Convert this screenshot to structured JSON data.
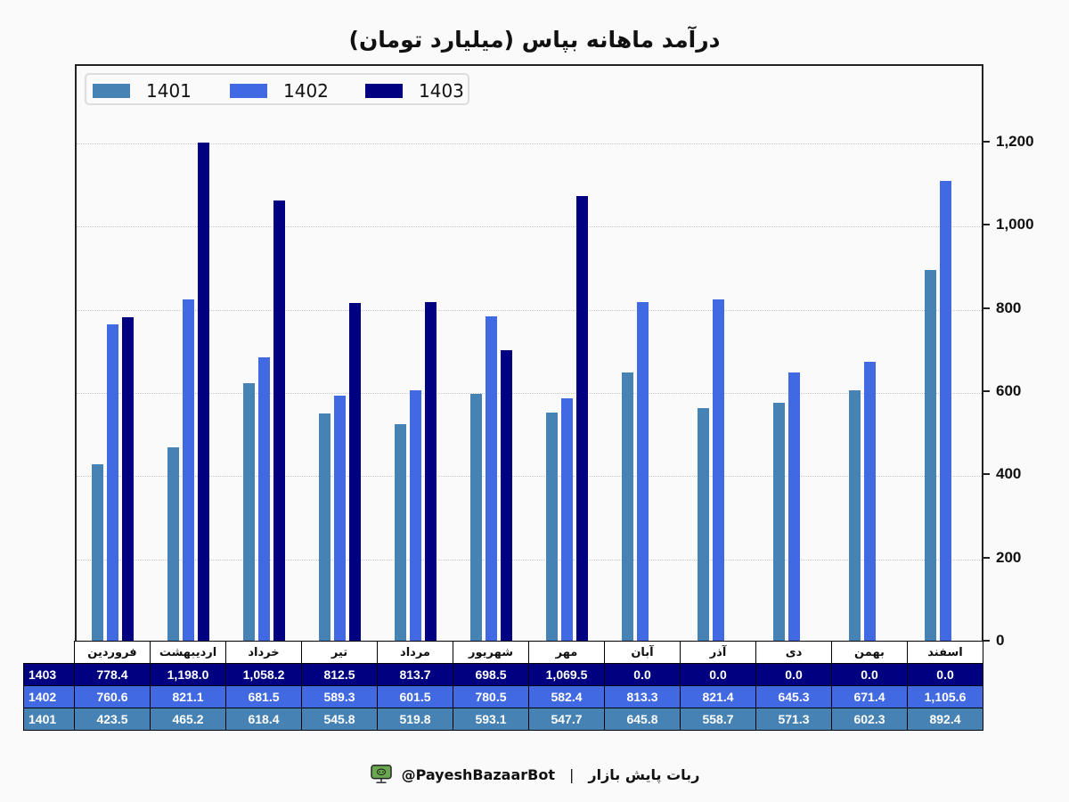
{
  "title": "درآمد ماهانه بپاس (میلیارد تومان)",
  "colors": {
    "1401": "#4682b4",
    "1402": "#4169e1",
    "1403": "#000080"
  },
  "legend": [
    {
      "label": "1401",
      "color": "#4682b4"
    },
    {
      "label": "1402",
      "color": "#4169e1"
    },
    {
      "label": "1403",
      "color": "#000080"
    }
  ],
  "yaxis": {
    "ticks": [
      "0",
      "200",
      "400",
      "600",
      "800",
      "1,000",
      "1,200"
    ]
  },
  "table": {
    "months": [
      "فروردین",
      "اردیبهشت",
      "خرداد",
      "تیر",
      "مرداد",
      "شهریور",
      "مهر",
      "آبان",
      "آذر",
      "دی",
      "بهمن",
      "اسفند"
    ],
    "rows": [
      {
        "label": "1403",
        "values": [
          "778.4",
          "1,198.0",
          "1,058.2",
          "812.5",
          "813.7",
          "698.5",
          "1,069.5",
          "0.0",
          "0.0",
          "0.0",
          "0.0",
          "0.0"
        ]
      },
      {
        "label": "1402",
        "values": [
          "760.6",
          "821.1",
          "681.5",
          "589.3",
          "601.5",
          "780.5",
          "582.4",
          "813.3",
          "821.4",
          "645.3",
          "671.4",
          "1,105.6"
        ]
      },
      {
        "label": "1401",
        "values": [
          "423.5",
          "465.2",
          "618.4",
          "545.8",
          "519.8",
          "593.1",
          "547.7",
          "645.8",
          "558.7",
          "571.3",
          "602.3",
          "892.4"
        ]
      }
    ]
  },
  "footer": {
    "bot_name": "ربات پایش بازار",
    "separator": "|",
    "handle": "@PayeshBazaarBot"
  },
  "chart_data": {
    "type": "bar",
    "title": "درآمد ماهانه بپاس (میلیارد تومان)",
    "xlabel": "",
    "ylabel": "",
    "ylim": [
      0,
      1380
    ],
    "yticks": [
      0,
      200,
      400,
      600,
      800,
      1000,
      1200
    ],
    "grid": true,
    "legend_position": "upper left",
    "y_axis_side": "right",
    "categories": [
      "فروردین",
      "اردیبهشت",
      "خرداد",
      "تیر",
      "مرداد",
      "شهریور",
      "مهر",
      "آبان",
      "آذر",
      "دی",
      "بهمن",
      "اسفند"
    ],
    "series": [
      {
        "name": "1401",
        "color": "#4682b4",
        "values": [
          423.5,
          465.2,
          618.4,
          545.8,
          519.8,
          593.1,
          547.7,
          645.8,
          558.7,
          571.3,
          602.3,
          892.4
        ]
      },
      {
        "name": "1402",
        "color": "#4169e1",
        "values": [
          760.6,
          821.1,
          681.5,
          589.3,
          601.5,
          780.5,
          582.4,
          813.3,
          821.4,
          645.3,
          671.4,
          1105.6
        ]
      },
      {
        "name": "1403",
        "color": "#000080",
        "values": [
          778.4,
          1198.0,
          1058.2,
          812.5,
          813.7,
          698.5,
          1069.5,
          0.0,
          0.0,
          0.0,
          0.0,
          0.0
        ]
      }
    ]
  }
}
